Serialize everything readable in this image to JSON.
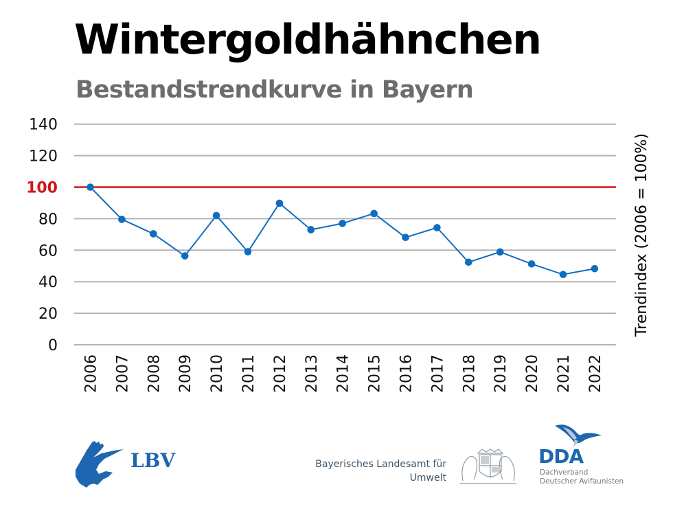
{
  "header": {
    "title": "Wintergoldhähnchen",
    "subtitle": "Bestandstrendkurve in Bayern"
  },
  "chart_data": {
    "type": "line",
    "title": "Wintergoldhähnchen",
    "subtitle": "Bestandstrendkurve in Bayern",
    "xlabel": "",
    "ylabel": "Trendindex (2006 = 100%)",
    "ylabel_position": "right",
    "x": [
      "2006",
      "2007",
      "2008",
      "2009",
      "2010",
      "2011",
      "2012",
      "2013",
      "2014",
      "2015",
      "2016",
      "2017",
      "2018",
      "2019",
      "2020",
      "2021",
      "2022"
    ],
    "series": [
      {
        "name": "Trendindex",
        "color": "#0f6dbf",
        "values": [
          100,
          79.6,
          70.4,
          56.4,
          82,
          59,
          89.8,
          73,
          77,
          83.3,
          68.1,
          74.3,
          52.4,
          58.9,
          51.3,
          44.6,
          48.3
        ]
      }
    ],
    "ylim": [
      0,
      140
    ],
    "yticks": [
      0,
      20,
      40,
      60,
      80,
      100,
      120,
      140
    ],
    "ytick_labels": [
      "0",
      "20",
      "40",
      "60",
      "80",
      "100",
      "120",
      "140"
    ],
    "reference_line": {
      "value": 100,
      "color": "#d0161b",
      "label": "100"
    },
    "grid": true,
    "grid_color": "#b4b4b4",
    "legend": "none"
  },
  "footer": {
    "lbv_logo_text": "LBV",
    "lfu_line1": "Bayerisches Landesamt für",
    "lfu_line2": "Umwelt",
    "dda_logo_text": "DDA",
    "dda_line1": "Dachverband",
    "dda_line2": "Deutscher Avifaunisten"
  },
  "colors": {
    "title": "#000000",
    "subtitle": "#6d6d6d",
    "series": "#0f6dbf",
    "reference": "#d0161b",
    "logo_blue": "#1f66b0"
  }
}
